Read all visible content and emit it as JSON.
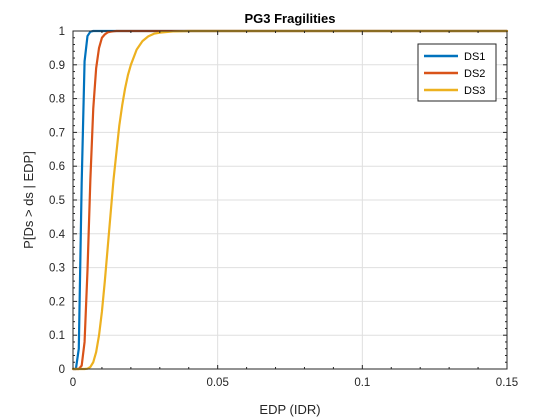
{
  "chart_data": {
    "type": "line",
    "title": "PG3 Fragilities",
    "xlabel": "EDP (IDR)",
    "ylabel": "P[Ds > ds | EDP]",
    "xlim": [
      0,
      0.15
    ],
    "ylim": [
      0,
      1
    ],
    "x_ticks": [
      "0",
      "0.05",
      "0.1",
      "0.15"
    ],
    "y_ticks": [
      "0",
      "0.1",
      "0.2",
      "0.3",
      "0.4",
      "0.5",
      "0.6",
      "0.7",
      "0.8",
      "0.9",
      "1"
    ],
    "x_tick_values": [
      0,
      0.05,
      0.1,
      0.15
    ],
    "y_tick_values": [
      0,
      0.1,
      0.2,
      0.3,
      0.4,
      0.5,
      0.6,
      0.7,
      0.8,
      0.9,
      1
    ],
    "grid": true,
    "legend_position": "top-right",
    "x": [
      0,
      0.001,
      0.002,
      0.003,
      0.004,
      0.005,
      0.006,
      0.007,
      0.008,
      0.009,
      0.01,
      0.011,
      0.012,
      0.013,
      0.014,
      0.015,
      0.016,
      0.017,
      0.018,
      0.019,
      0.02,
      0.022,
      0.024,
      0.026,
      0.028,
      0.03,
      0.035,
      0.04,
      0.05,
      0.06,
      0.08,
      0.1,
      0.12,
      0.15
    ],
    "series": [
      {
        "name": "DS1",
        "color": "#0072BD",
        "values": [
          0,
          0.0,
          0.06,
          0.55,
          0.91,
          0.985,
          0.998,
          1,
          1,
          1,
          1,
          1,
          1,
          1,
          1,
          1,
          1,
          1,
          1,
          1,
          1,
          1,
          1,
          1,
          1,
          1,
          1,
          1,
          1,
          1,
          1,
          1,
          1,
          1
        ]
      },
      {
        "name": "DS2",
        "color": "#D95319",
        "values": [
          0,
          0,
          0,
          0.01,
          0.08,
          0.29,
          0.56,
          0.77,
          0.89,
          0.95,
          0.98,
          0.99,
          0.996,
          0.998,
          0.999,
          1,
          1,
          1,
          1,
          1,
          1,
          1,
          1,
          1,
          1,
          1,
          1,
          1,
          1,
          1,
          1,
          1,
          1,
          1
        ]
      },
      {
        "name": "DS3",
        "color": "#EDB120",
        "values": [
          0,
          0,
          0,
          0,
          0,
          0.001,
          0.006,
          0.02,
          0.05,
          0.1,
          0.17,
          0.26,
          0.36,
          0.46,
          0.56,
          0.64,
          0.72,
          0.78,
          0.83,
          0.87,
          0.9,
          0.945,
          0.97,
          0.984,
          0.992,
          0.995,
          0.999,
          1,
          1,
          1,
          1,
          1,
          1,
          1
        ]
      }
    ]
  }
}
